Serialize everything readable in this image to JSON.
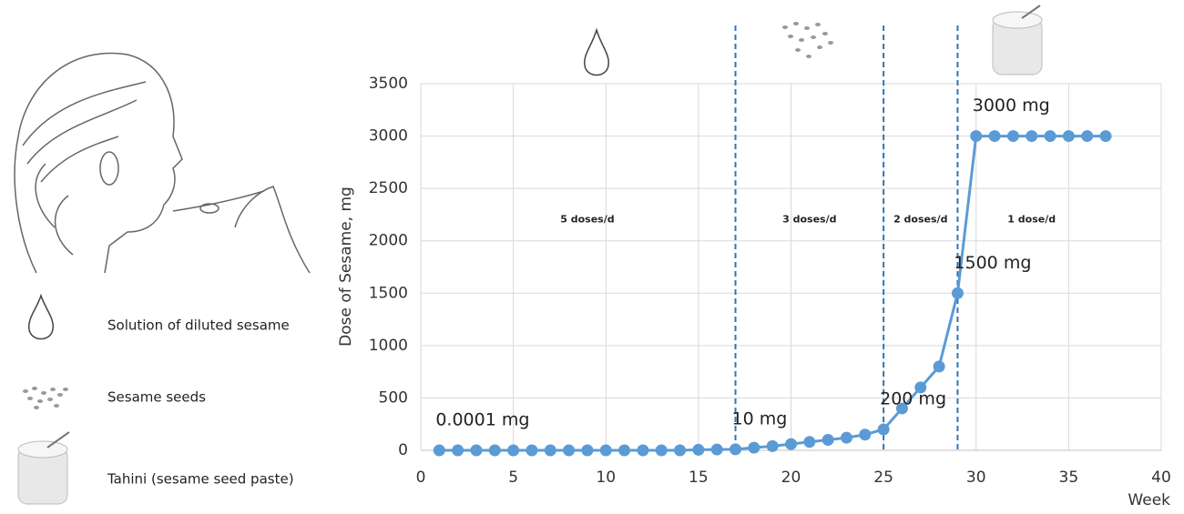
{
  "chart_data": {
    "type": "line",
    "y_label": "Dose of Sesame, mg",
    "x_label": "Week",
    "x": [
      1,
      2,
      3,
      4,
      5,
      6,
      7,
      8,
      9,
      10,
      11,
      12,
      13,
      14,
      15,
      16,
      17,
      18,
      19,
      20,
      21,
      22,
      23,
      24,
      25,
      26,
      27,
      28,
      29,
      30,
      31,
      32,
      33,
      34,
      35,
      36,
      37
    ],
    "series": [
      {
        "color": "#5b9bd5",
        "values": [
          0.0001,
          0,
          0,
          0,
          0,
          0,
          0,
          0,
          0,
          0,
          0,
          0,
          0,
          0,
          5,
          8,
          10,
          25,
          40,
          60,
          80,
          100,
          120,
          150,
          200,
          400,
          600,
          800,
          1500,
          3000,
          3000,
          3000,
          3000,
          3000,
          3000,
          3000,
          3000
        ],
        "value_labels": [
          "0.0001 mg",
          null,
          null,
          null,
          null,
          null,
          null,
          null,
          null,
          null,
          null,
          null,
          null,
          null,
          null,
          null,
          "10 mg",
          null,
          null,
          null,
          null,
          null,
          null,
          null,
          "200 mg",
          null,
          null,
          null,
          "1500 mg",
          "3000 mg",
          null,
          null,
          null,
          null,
          null,
          null,
          null
        ]
      }
    ],
    "xlim": [
      0,
      40
    ],
    "xticks": [
      0,
      5,
      10,
      15,
      20,
      25,
      30,
      35,
      40
    ],
    "ylim": [
      0,
      3500
    ],
    "yticks": [
      0,
      500,
      1000,
      1500,
      2000,
      2500,
      3000,
      3500
    ],
    "grid": true,
    "vlines": [
      17,
      25,
      29
    ],
    "phases": [
      "5 doses/d",
      "3 doses/d",
      "2 doses/d",
      "1 dose/d"
    ],
    "legend_items": [
      "Solution of diluted sesame",
      "Sesame seeds",
      "Tahini (sesame seed paste)"
    ]
  }
}
